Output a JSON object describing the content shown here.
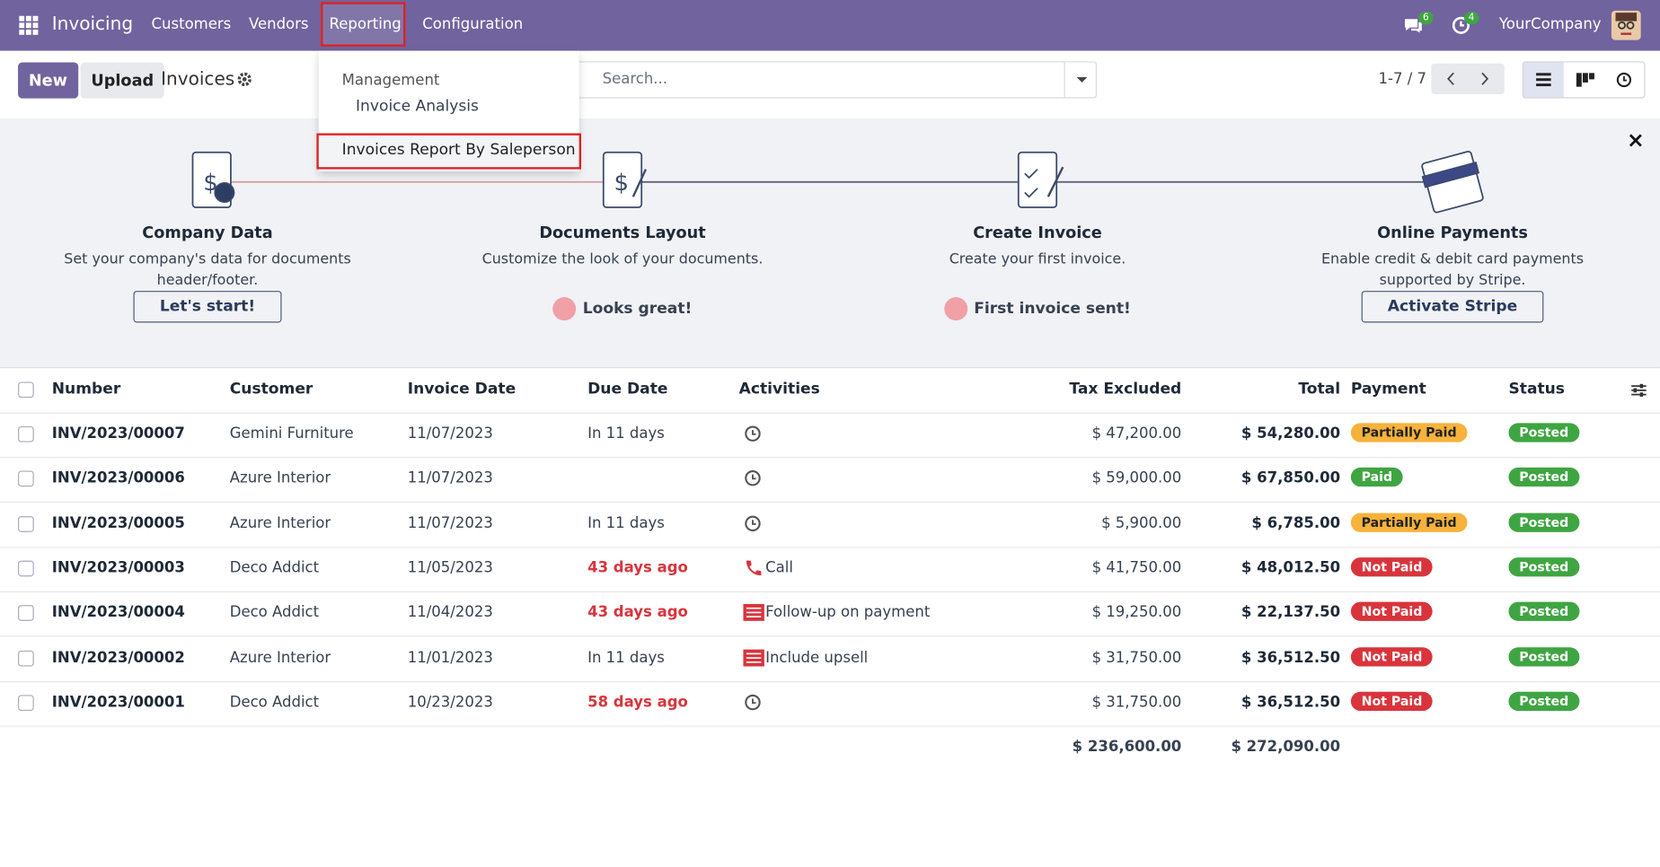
{
  "navbar": {
    "app": "Invoicing",
    "menu": [
      "Customers",
      "Vendors",
      "Reporting",
      "Configuration"
    ],
    "messages_badge": "6",
    "activities_badge": "4",
    "company": "YourCompany"
  },
  "dropdown": {
    "section": "Management",
    "items": [
      "Invoice Analysis",
      "Invoices Report By Saleperson"
    ]
  },
  "control": {
    "new": "New",
    "upload": "Upload",
    "title": "Invoices",
    "search": "Search...",
    "pager": "1-7 / 7"
  },
  "onboarding": [
    {
      "title": "Company Data",
      "description": "Set your company's data for documents header/footer.",
      "button": "Let's start!"
    },
    {
      "title": "Documents Layout",
      "description": "Customize the look of your documents.",
      "done": "Looks great!"
    },
    {
      "title": "Create Invoice",
      "description": "Create your first invoice.",
      "done": "First invoice sent!"
    },
    {
      "title": "Online Payments",
      "description": "Enable credit & debit card payments supported by Stripe.",
      "button": "Activate Stripe"
    }
  ],
  "table": {
    "headers": [
      "Number",
      "Customer",
      "Invoice Date",
      "Due Date",
      "Activities",
      "Tax Excluded",
      "Total",
      "Payment",
      "Status"
    ],
    "rows": [
      {
        "number": "INV/2023/00007",
        "customer": "Gemini Furniture",
        "date": "11/07/2023",
        "due": "In 11 days",
        "overdue": false,
        "activity_icon": "clock",
        "activity": null,
        "tax_excluded": "$ 47,200.00",
        "total": "$ 54,280.00",
        "payment": "Partially Paid",
        "payment_color": "#f7b23b",
        "status": "Posted"
      },
      {
        "number": "INV/2023/00006",
        "customer": "Azure Interior",
        "date": "11/07/2023",
        "due": null,
        "overdue": false,
        "activity_icon": "clock",
        "activity": null,
        "tax_excluded": "$ 59,000.00",
        "total": "$ 67,850.00",
        "payment": "Paid",
        "payment_color": "#3fa542",
        "status": "Posted"
      },
      {
        "number": "INV/2023/00005",
        "customer": "Azure Interior",
        "date": "11/07/2023",
        "due": "In 11 days",
        "overdue": false,
        "activity_icon": "clock",
        "activity": null,
        "tax_excluded": "$ 5,900.00",
        "total": "$ 6,785.00",
        "payment": "Partially Paid",
        "payment_color": "#f7b23b",
        "status": "Posted"
      },
      {
        "number": "INV/2023/00003",
        "customer": "Deco Addict",
        "date": "11/05/2023",
        "due": "43 days ago",
        "overdue": true,
        "activity_icon": "phone",
        "activity": "Call",
        "tax_excluded": "$ 41,750.00",
        "total": "$ 48,012.50",
        "payment": "Not Paid",
        "payment_color": "#d9343c",
        "status": "Posted"
      },
      {
        "number": "INV/2023/00004",
        "customer": "Deco Addict",
        "date": "11/04/2023",
        "due": "43 days ago",
        "overdue": true,
        "activity_icon": "list",
        "activity": "Follow-up on payment",
        "tax_excluded": "$ 19,250.00",
        "total": "$ 22,137.50",
        "payment": "Not Paid",
        "payment_color": "#d9343c",
        "status": "Posted"
      },
      {
        "number": "INV/2023/00002",
        "customer": "Azure Interior",
        "date": "11/01/2023",
        "due": "In 11 days",
        "overdue": false,
        "activity_icon": "list",
        "activity": "Include upsell",
        "tax_excluded": "$ 31,750.00",
        "total": "$ 36,512.50",
        "payment": "Not Paid",
        "payment_color": "#d9343c",
        "status": "Posted"
      },
      {
        "number": "INV/2023/00001",
        "customer": "Deco Addict",
        "date": "10/23/2023",
        "due": "58 days ago",
        "overdue": true,
        "activity_icon": "clock",
        "activity": null,
        "tax_excluded": "$ 31,750.00",
        "total": "$ 36,512.50",
        "payment": "Not Paid",
        "payment_color": "#d9343c",
        "status": "Posted"
      }
    ],
    "totals": {
      "tax_excluded": "$ 236,600.00",
      "total": "$ 272,090.00"
    }
  }
}
